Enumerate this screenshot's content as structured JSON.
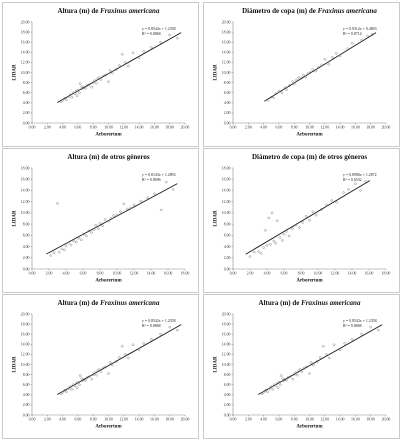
{
  "chart_data": [
    {
      "type": "scatter",
      "title_prefix": "Altura (m) de ",
      "title_species": "Fraxinus americana",
      "xlabel": "Arborertum",
      "ylabel": "LIDAR",
      "xlim": [
        0,
        20
      ],
      "ylim": [
        0,
        20
      ],
      "xticks": [
        "0.00",
        "2.00",
        "4.00",
        "6.00",
        "8.00",
        "10.00",
        "12.00",
        "14.00",
        "16.00",
        "18.00",
        "20.00"
      ],
      "yticks": [
        "0.00",
        "2.00",
        "4.00",
        "6.00",
        "8.00",
        "10.00",
        "12.00",
        "14.00",
        "16.00",
        "18.00",
        "20.00"
      ],
      "trendline": {
        "slope": 0.8542,
        "intercept": 1.2358
      },
      "equation": "y = 0.8542x + 1.2358",
      "r2": "R² = 0.8868",
      "points": [
        [
          3.8,
          4.2
        ],
        [
          4.0,
          4.5
        ],
        [
          4.3,
          4.9
        ],
        [
          4.5,
          4.6
        ],
        [
          4.8,
          5.2
        ],
        [
          5.0,
          5.6
        ],
        [
          5.2,
          5.1
        ],
        [
          5.4,
          6.0
        ],
        [
          5.6,
          5.8
        ],
        [
          5.8,
          6.3
        ],
        [
          5.9,
          5.4
        ],
        [
          6.0,
          6.5
        ],
        [
          6.2,
          6.0
        ],
        [
          6.3,
          7.8
        ],
        [
          6.5,
          7.2
        ],
        [
          6.6,
          6.8
        ],
        [
          6.8,
          7.0
        ],
        [
          7.0,
          6.9
        ],
        [
          7.2,
          7.4
        ],
        [
          7.5,
          7.6
        ],
        [
          7.8,
          7.1
        ],
        [
          8.0,
          8.0
        ],
        [
          8.2,
          8.4
        ],
        [
          8.4,
          7.9
        ],
        [
          8.6,
          8.8
        ],
        [
          8.8,
          9.0
        ],
        [
          9.0,
          8.6
        ],
        [
          9.3,
          9.3
        ],
        [
          9.6,
          9.5
        ],
        [
          10.0,
          8.2
        ],
        [
          10.2,
          10.4
        ],
        [
          10.5,
          9.9
        ],
        [
          11.0,
          10.6
        ],
        [
          11.4,
          11.4
        ],
        [
          11.8,
          13.6
        ],
        [
          12.2,
          12.0
        ],
        [
          12.6,
          11.3
        ],
        [
          13.2,
          13.9
        ],
        [
          14.0,
          12.9
        ],
        [
          14.6,
          14.2
        ],
        [
          15.6,
          15.0
        ],
        [
          16.8,
          16.0
        ],
        [
          18.0,
          17.4
        ],
        [
          19.0,
          16.8
        ]
      ]
    },
    {
      "type": "scatter",
      "title_prefix": "Diámetro de copa (m) de ",
      "title_species": "Fraxinus americana",
      "xlabel": "Arborertum",
      "ylabel": "LIDAR",
      "xlim": [
        0,
        20
      ],
      "ylim": [
        0,
        20
      ],
      "xticks": [
        "0.00",
        "2.00",
        "4.00",
        "6.00",
        "8.00",
        "10.00",
        "12.00",
        "14.00",
        "16.00",
        "18.00",
        "20.00"
      ],
      "yticks": [
        "0.00",
        "2.00",
        "4.00",
        "6.00",
        "8.00",
        "10.00",
        "12.00",
        "14.00",
        "16.00",
        "18.00",
        "20.00"
      ],
      "trendline": {
        "slope": 0.9312,
        "intercept": 0.4803
      },
      "equation": "y = 0.9312x + 0.4803",
      "r2": "R² = 0.8714",
      "points": [
        [
          4.6,
          4.5
        ],
        [
          5.0,
          5.1
        ],
        [
          5.3,
          5.0
        ],
        [
          5.6,
          5.8
        ],
        [
          6.0,
          6.3
        ],
        [
          6.4,
          6.0
        ],
        [
          6.8,
          7.0
        ],
        [
          7.0,
          6.6
        ],
        [
          7.4,
          7.4
        ],
        [
          7.8,
          8.2
        ],
        [
          8.0,
          7.7
        ],
        [
          8.3,
          8.5
        ],
        [
          8.6,
          9.0
        ],
        [
          9.0,
          8.9
        ],
        [
          9.2,
          9.5
        ],
        [
          9.5,
          9.1
        ],
        [
          9.8,
          9.8
        ],
        [
          10.1,
          10.0
        ],
        [
          10.4,
          10.6
        ],
        [
          10.8,
          10.3
        ],
        [
          11.2,
          11.0
        ],
        [
          11.6,
          11.5
        ],
        [
          12.0,
          12.6
        ],
        [
          12.5,
          11.6
        ],
        [
          13.0,
          13.0
        ],
        [
          13.5,
          13.8
        ],
        [
          14.0,
          13.3
        ],
        [
          15.0,
          14.7
        ],
        [
          15.6,
          15.8
        ],
        [
          16.8,
          16.4
        ],
        [
          17.6,
          17.2
        ],
        [
          18.2,
          17.5
        ]
      ]
    },
    {
      "type": "scatter",
      "title_prefix": "Altura (m) de otros géneros",
      "title_species": "",
      "xlabel": "Arborertum",
      "ylabel": "LIDAR",
      "xlim": [
        0,
        18
      ],
      "ylim": [
        0,
        18
      ],
      "xticks": [
        "0.00",
        "2.00",
        "4.00",
        "6.00",
        "8.00",
        "10.00",
        "12.00",
        "14.00",
        "16.00",
        "18.00"
      ],
      "yticks": [
        "0.00",
        "2.00",
        "4.00",
        "6.00",
        "8.00",
        "10.00",
        "12.00",
        "14.00",
        "16.00",
        "18.00"
      ],
      "trendline": {
        "slope": 0.8143,
        "intercept": 1.2893
      },
      "equation": "y = 0.8143x + 1.2893",
      "r2": "R² = 0.8096",
      "points": [
        [
          2.2,
          2.4
        ],
        [
          2.6,
          2.9
        ],
        [
          3.0,
          11.7
        ],
        [
          3.2,
          3.0
        ],
        [
          3.5,
          3.6
        ],
        [
          3.8,
          3.4
        ],
        [
          4.0,
          4.1
        ],
        [
          4.3,
          4.6
        ],
        [
          4.6,
          4.3
        ],
        [
          4.9,
          5.0
        ],
        [
          5.2,
          4.8
        ],
        [
          5.5,
          5.5
        ],
        [
          5.8,
          5.2
        ],
        [
          6.1,
          6.2
        ],
        [
          6.4,
          5.9
        ],
        [
          6.7,
          6.8
        ],
        [
          7.0,
          6.5
        ],
        [
          7.3,
          7.0
        ],
        [
          7.5,
          7.8
        ],
        [
          7.8,
          7.2
        ],
        [
          8.0,
          8.1
        ],
        [
          8.3,
          7.7
        ],
        [
          8.6,
          8.8
        ],
        [
          9.0,
          8.5
        ],
        [
          9.3,
          9.0
        ],
        [
          9.6,
          9.5
        ],
        [
          10.0,
          9.6
        ],
        [
          10.4,
          10.2
        ],
        [
          10.8,
          11.6
        ],
        [
          11.2,
          10.7
        ],
        [
          11.6,
          10.9
        ],
        [
          12.0,
          11.4
        ],
        [
          12.8,
          12.1
        ],
        [
          13.6,
          12.7
        ],
        [
          14.4,
          13.4
        ],
        [
          15.2,
          10.5
        ],
        [
          15.8,
          15.5
        ],
        [
          16.6,
          14.2
        ]
      ]
    },
    {
      "type": "scatter",
      "title_prefix": "Diámetro de copa (m) de otros géneros",
      "title_species": "",
      "xlabel": "Arborertum",
      "ylabel": "LIDAR",
      "xlim": [
        0,
        18
      ],
      "ylim": [
        0,
        18
      ],
      "xticks": [
        "0.00",
        "2.00",
        "4.00",
        "6.00",
        "8.00",
        "10.00",
        "12.00",
        "14.00",
        "16.00",
        "18.00"
      ],
      "yticks": [
        "0.00",
        "2.00",
        "4.00",
        "6.00",
        "8.00",
        "10.00",
        "12.00",
        "14.00",
        "16.00",
        "18.00"
      ],
      "trendline": {
        "slope": 0.8986,
        "intercept": 1.2872
      },
      "equation": "y = 0.8986x + 1.2872",
      "r2": "R² = 0.6532",
      "points": [
        [
          2.0,
          2.2
        ],
        [
          2.5,
          3.0
        ],
        [
          3.0,
          3.1
        ],
        [
          3.3,
          2.8
        ],
        [
          3.6,
          3.8
        ],
        [
          3.8,
          6.9
        ],
        [
          4.0,
          4.2
        ],
        [
          4.2,
          9.1
        ],
        [
          4.4,
          4.4
        ],
        [
          4.6,
          10.0
        ],
        [
          4.8,
          5.0
        ],
        [
          5.0,
          4.6
        ],
        [
          5.2,
          8.6
        ],
        [
          5.5,
          5.6
        ],
        [
          5.8,
          5.1
        ],
        [
          6.0,
          6.2
        ],
        [
          6.3,
          6.7
        ],
        [
          6.6,
          5.9
        ],
        [
          7.0,
          7.2
        ],
        [
          7.4,
          7.8
        ],
        [
          7.8,
          7.4
        ],
        [
          8.2,
          8.3
        ],
        [
          8.6,
          9.4
        ],
        [
          9.0,
          8.7
        ],
        [
          9.4,
          10.2
        ],
        [
          9.8,
          9.6
        ],
        [
          10.4,
          10.6
        ],
        [
          11.0,
          11.4
        ],
        [
          11.6,
          12.2
        ],
        [
          12.2,
          11.9
        ],
        [
          13.0,
          13.6
        ],
        [
          13.6,
          14.2
        ],
        [
          14.4,
          15.2
        ],
        [
          15.0,
          14.0
        ],
        [
          15.6,
          15.6
        ]
      ]
    },
    {
      "type": "scatter",
      "title_prefix": "Altura (m) de ",
      "title_species": "Fraxinus americana",
      "xlabel": "Arborertum",
      "ylabel": "LIDAR",
      "xlim": [
        0,
        20
      ],
      "ylim": [
        0,
        20
      ],
      "xticks": [
        "0.00",
        "2.00",
        "4.00",
        "6.00",
        "8.00",
        "10.00",
        "12.00",
        "14.00",
        "16.00",
        "18.00",
        "20.00"
      ],
      "yticks": [
        "0.00",
        "2.00",
        "4.00",
        "6.00",
        "8.00",
        "10.00",
        "12.00",
        "14.00",
        "16.00",
        "18.00",
        "20.00"
      ],
      "trendline": {
        "slope": 0.8542,
        "intercept": 1.2358
      },
      "equation": "y = 0.8542x + 1.2358",
      "r2": "R² = 0.8868",
      "points": [
        [
          3.8,
          4.2
        ],
        [
          4.0,
          4.5
        ],
        [
          4.3,
          4.9
        ],
        [
          4.5,
          4.6
        ],
        [
          4.8,
          5.2
        ],
        [
          5.0,
          5.6
        ],
        [
          5.2,
          5.1
        ],
        [
          5.4,
          6.0
        ],
        [
          5.6,
          5.8
        ],
        [
          5.8,
          6.3
        ],
        [
          5.9,
          5.4
        ],
        [
          6.0,
          6.5
        ],
        [
          6.2,
          6.0
        ],
        [
          6.3,
          7.8
        ],
        [
          6.5,
          7.2
        ],
        [
          6.6,
          6.8
        ],
        [
          6.8,
          7.0
        ],
        [
          7.0,
          6.9
        ],
        [
          7.2,
          7.4
        ],
        [
          7.5,
          7.6
        ],
        [
          7.8,
          7.1
        ],
        [
          8.0,
          8.0
        ],
        [
          8.2,
          8.4
        ],
        [
          8.4,
          7.9
        ],
        [
          8.6,
          8.8
        ],
        [
          8.8,
          9.0
        ],
        [
          9.0,
          8.6
        ],
        [
          9.3,
          9.3
        ],
        [
          9.6,
          9.5
        ],
        [
          10.0,
          8.2
        ],
        [
          10.2,
          10.4
        ],
        [
          10.5,
          9.9
        ],
        [
          11.0,
          10.6
        ],
        [
          11.4,
          11.4
        ],
        [
          11.8,
          13.6
        ],
        [
          12.2,
          12.0
        ],
        [
          12.6,
          11.3
        ],
        [
          13.2,
          13.9
        ],
        [
          14.0,
          12.9
        ],
        [
          14.6,
          14.2
        ],
        [
          15.6,
          15.0
        ],
        [
          16.8,
          16.0
        ],
        [
          18.0,
          17.4
        ],
        [
          19.0,
          16.8
        ]
      ]
    },
    {
      "type": "scatter",
      "title_prefix": "Altura (m) de ",
      "title_species": "Fraxinus americana",
      "xlabel": "Arborertum",
      "ylabel": "LIDAR",
      "xlim": [
        0,
        20
      ],
      "ylim": [
        0,
        20
      ],
      "xticks": [
        "0.00",
        "2.00",
        "4.00",
        "6.00",
        "8.00",
        "10.00",
        "12.00",
        "14.00",
        "16.00",
        "18.00",
        "20.00"
      ],
      "yticks": [
        "0.00",
        "2.00",
        "4.00",
        "6.00",
        "8.00",
        "10.00",
        "12.00",
        "14.00",
        "16.00",
        "18.00",
        "20.00"
      ],
      "trendline": {
        "slope": 0.8542,
        "intercept": 1.2358
      },
      "equation": "y = 0.8542x + 1.2358",
      "r2": "R² = 0.8868",
      "points": [
        [
          3.8,
          4.2
        ],
        [
          4.0,
          4.5
        ],
        [
          4.3,
          4.9
        ],
        [
          4.5,
          4.6
        ],
        [
          4.8,
          5.2
        ],
        [
          5.0,
          5.6
        ],
        [
          5.2,
          5.1
        ],
        [
          5.4,
          6.0
        ],
        [
          5.6,
          5.8
        ],
        [
          5.8,
          6.3
        ],
        [
          5.9,
          5.4
        ],
        [
          6.0,
          6.5
        ],
        [
          6.2,
          6.0
        ],
        [
          6.3,
          7.8
        ],
        [
          6.5,
          7.2
        ],
        [
          6.6,
          6.8
        ],
        [
          6.8,
          7.0
        ],
        [
          7.0,
          6.9
        ],
        [
          7.2,
          7.4
        ],
        [
          7.5,
          7.6
        ],
        [
          7.8,
          7.1
        ],
        [
          8.0,
          8.0
        ],
        [
          8.2,
          8.4
        ],
        [
          8.4,
          7.9
        ],
        [
          8.6,
          8.8
        ],
        [
          8.8,
          9.0
        ],
        [
          9.0,
          8.6
        ],
        [
          9.3,
          9.3
        ],
        [
          9.6,
          9.5
        ],
        [
          10.0,
          8.2
        ],
        [
          10.2,
          10.4
        ],
        [
          10.5,
          9.9
        ],
        [
          11.0,
          10.6
        ],
        [
          11.4,
          11.4
        ],
        [
          11.8,
          13.6
        ],
        [
          12.2,
          12.0
        ],
        [
          12.6,
          11.3
        ],
        [
          13.2,
          13.9
        ],
        [
          14.0,
          12.9
        ],
        [
          14.6,
          14.2
        ],
        [
          15.6,
          15.0
        ],
        [
          16.8,
          16.0
        ],
        [
          18.0,
          17.4
        ],
        [
          19.0,
          16.8
        ]
      ]
    }
  ]
}
